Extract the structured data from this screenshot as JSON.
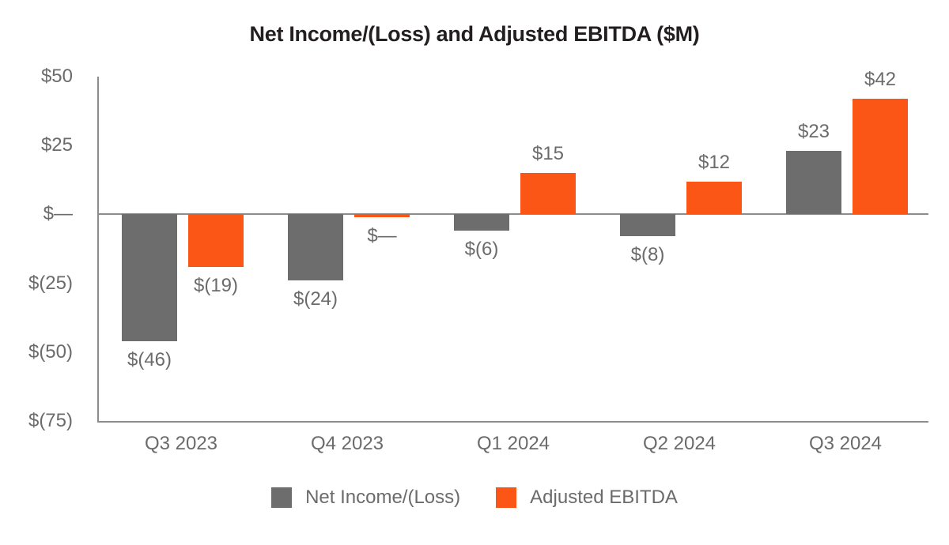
{
  "title": "Net Income/(Loss) and Adjusted EBITDA ($M)",
  "colors": {
    "net_income": "#6d6d6d",
    "adjusted_ebitda": "#fb5616",
    "axis_line": "#8c8c8c",
    "label_text": "#6b6b6b",
    "title_text": "#231f20"
  },
  "chart_data": {
    "type": "bar",
    "title": "Net Income/(Loss) and Adjusted EBITDA ($M)",
    "categories": [
      "Q3 2023",
      "Q4 2023",
      "Q1 2024",
      "Q2 2024",
      "Q3 2024"
    ],
    "series": [
      {
        "name": "Net Income/(Loss)",
        "color": "#6d6d6d",
        "values": [
          -46,
          -24,
          -6,
          -8,
          23
        ],
        "labels": [
          "$(46)",
          "$(24)",
          "$(6)",
          "$(8)",
          "$23"
        ]
      },
      {
        "name": "Adjusted EBITDA",
        "color": "#fb5616",
        "values": [
          -19,
          -0.5,
          15,
          12,
          42
        ],
        "labels": [
          "$(19)",
          "$—",
          "$15",
          "$12",
          "$42"
        ]
      }
    ],
    "xlabel": "",
    "ylabel": "",
    "ylim": [
      -75,
      50
    ],
    "y_ticks": [
      {
        "value": 50,
        "label": "$50"
      },
      {
        "value": 25,
        "label": "$25"
      },
      {
        "value": 0,
        "label": "$—"
      },
      {
        "value": -25,
        "label": "$(25)"
      },
      {
        "value": -50,
        "label": "$(50)"
      },
      {
        "value": -75,
        "label": "$(75)"
      }
    ],
    "grid": false,
    "legend_position": "bottom"
  },
  "legend": {
    "items": [
      {
        "label": "Net Income/(Loss)",
        "color": "#6d6d6d"
      },
      {
        "label": "Adjusted EBITDA",
        "color": "#fb5616"
      }
    ]
  }
}
